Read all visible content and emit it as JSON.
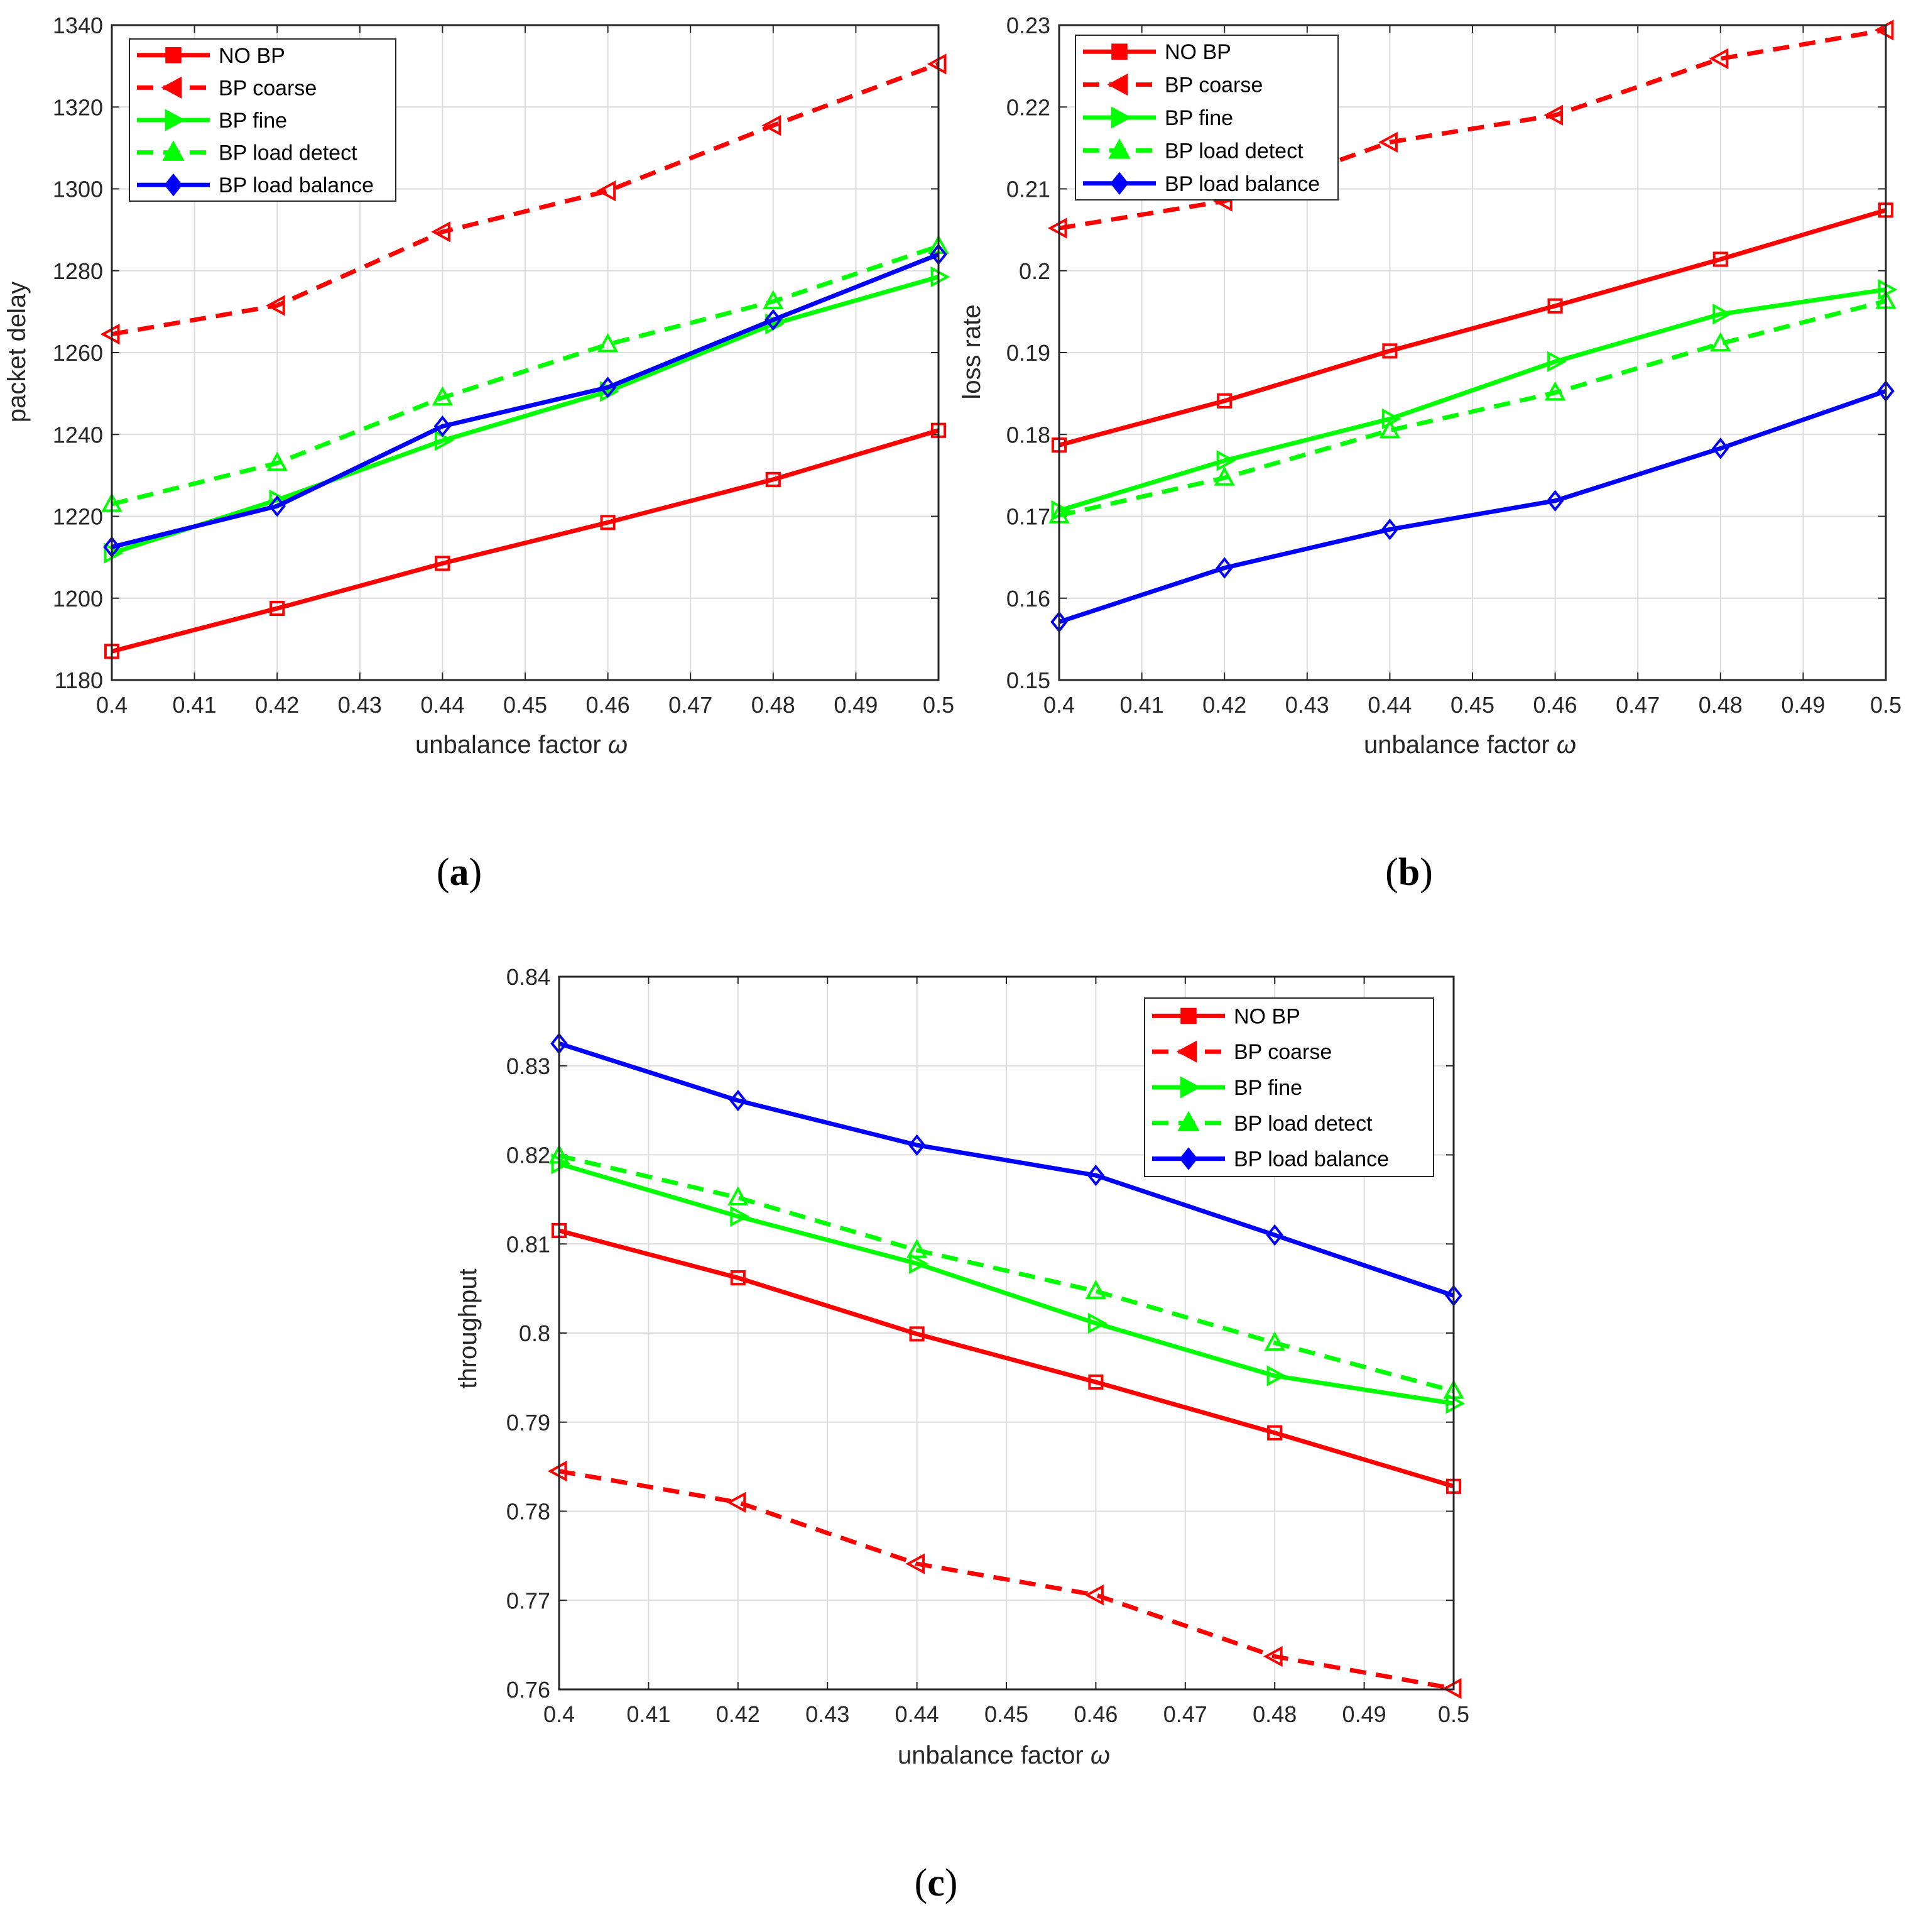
{
  "colors": {
    "no_bp": "#ff0000",
    "bp_coarse": "#ff0000",
    "bp_fine": "#00ff00",
    "bp_load_detect": "#00ff00",
    "bp_load_balance": "#0000ff",
    "grid": "#dcdcdc",
    "axis": "#262626"
  },
  "chart_data": [
    {
      "id": "a",
      "type": "line",
      "caption_letter": "a",
      "xlabel": "unbalance factor",
      "xlabel_symbol": "ω",
      "ylabel": "packet delay",
      "xlim": [
        0.4,
        0.5
      ],
      "ylim": [
        1180,
        1340
      ],
      "grid": true,
      "legend_position": "top-left",
      "x_ticks": [
        "0.4",
        "0.41",
        "0.42",
        "0.43",
        "0.44",
        "0.45",
        "0.46",
        "0.47",
        "0.48",
        "0.49",
        "0.5"
      ],
      "y_ticks": [
        "1180",
        "1200",
        "1220",
        "1240",
        "1260",
        "1280",
        "1300",
        "1320",
        "1340"
      ],
      "x": [
        0.4,
        0.42,
        0.44,
        0.46,
        0.48,
        0.5
      ],
      "series": [
        {
          "name": "NO BP",
          "style": "solid",
          "color": "#ff0000",
          "marker": "square",
          "values": [
            1187,
            1197.5,
            1208.5,
            1218.5,
            1229,
            1241
          ]
        },
        {
          "name": "BP coarse",
          "style": "dashed",
          "color": "#ff0000",
          "marker": "triangle-left",
          "values": [
            1264.5,
            1271.5,
            1289.5,
            1299.5,
            1315.5,
            1330.5
          ]
        },
        {
          "name": "BP fine",
          "style": "solid",
          "color": "#00ff00",
          "marker": "triangle-right",
          "values": [
            1211,
            1224,
            1238.5,
            1250.5,
            1267,
            1278.5
          ]
        },
        {
          "name": "BP load detect",
          "style": "dashed",
          "color": "#00ff00",
          "marker": "triangle-up",
          "values": [
            1223,
            1233,
            1249,
            1262,
            1272.5,
            1286
          ]
        },
        {
          "name": "BP load balance",
          "style": "solid",
          "color": "#0000ff",
          "marker": "diamond",
          "values": [
            1212.5,
            1222.5,
            1242,
            1251.5,
            1268,
            1284
          ]
        }
      ]
    },
    {
      "id": "b",
      "type": "line",
      "caption_letter": "b",
      "xlabel": "unbalance factor",
      "xlabel_symbol": "ω",
      "ylabel": "loss rate",
      "xlim": [
        0.4,
        0.5
      ],
      "ylim": [
        0.15,
        0.23
      ],
      "grid": true,
      "legend_position": "top-left",
      "x_ticks": [
        "0.4",
        "0.41",
        "0.42",
        "0.43",
        "0.44",
        "0.45",
        "0.46",
        "0.47",
        "0.48",
        "0.49",
        "0.5"
      ],
      "y_ticks": [
        "0.15",
        "0.16",
        "0.17",
        "0.18",
        "0.19",
        "0.2",
        "0.21",
        "0.22",
        "0.23"
      ],
      "x": [
        0.4,
        0.42,
        0.44,
        0.46,
        0.48,
        0.5
      ],
      "series": [
        {
          "name": "NO BP",
          "style": "solid",
          "color": "#ff0000",
          "marker": "square",
          "values": [
            0.1787,
            0.1841,
            0.1902,
            0.1957,
            0.2014,
            0.2074
          ]
        },
        {
          "name": "BP coarse",
          "style": "dashed",
          "color": "#ff0000",
          "marker": "triangle-left",
          "values": [
            0.2052,
            0.2085,
            0.2157,
            0.219,
            0.2259,
            0.2294
          ]
        },
        {
          "name": "BP fine",
          "style": "solid",
          "color": "#00ff00",
          "marker": "triangle-right",
          "values": [
            0.1707,
            0.1768,
            0.1819,
            0.1889,
            0.1947,
            0.1977
          ]
        },
        {
          "name": "BP load detect",
          "style": "dashed",
          "color": "#00ff00",
          "marker": "triangle-up",
          "values": [
            0.1701,
            0.1747,
            0.1805,
            0.1851,
            0.1911,
            0.1963
          ]
        },
        {
          "name": "BP load balance",
          "style": "solid",
          "color": "#0000ff",
          "marker": "diamond",
          "values": [
            0.1571,
            0.1637,
            0.1684,
            0.1719,
            0.1783,
            0.1853
          ]
        }
      ]
    },
    {
      "id": "c",
      "type": "line",
      "caption_letter": "c",
      "xlabel": "unbalance factor",
      "xlabel_symbol": "ω",
      "ylabel": "throughput",
      "xlim": [
        0.4,
        0.5
      ],
      "ylim": [
        0.76,
        0.84
      ],
      "grid": true,
      "legend_position": "top-right",
      "x_ticks": [
        "0.4",
        "0.41",
        "0.42",
        "0.43",
        "0.44",
        "0.45",
        "0.46",
        "0.47",
        "0.48",
        "0.49",
        "0.5"
      ],
      "y_ticks": [
        "0.76",
        "0.77",
        "0.78",
        "0.79",
        "0.8",
        "0.81",
        "0.82",
        "0.83",
        "0.84"
      ],
      "x": [
        0.4,
        0.42,
        0.44,
        0.46,
        0.48,
        0.5
      ],
      "series": [
        {
          "name": "NO BP",
          "style": "solid",
          "color": "#ff0000",
          "marker": "square",
          "values": [
            0.8115,
            0.8062,
            0.7999,
            0.7945,
            0.7888,
            0.7828
          ]
        },
        {
          "name": "BP coarse",
          "style": "dashed",
          "color": "#ff0000",
          "marker": "triangle-left",
          "values": [
            0.7845,
            0.781,
            0.7741,
            0.7706,
            0.7637,
            0.7601
          ]
        },
        {
          "name": "BP fine",
          "style": "solid",
          "color": "#00ff00",
          "marker": "triangle-right",
          "values": [
            0.819,
            0.8131,
            0.8078,
            0.8011,
            0.7952,
            0.7921
          ]
        },
        {
          "name": "BP load detect",
          "style": "dashed",
          "color": "#00ff00",
          "marker": "triangle-up",
          "values": [
            0.8199,
            0.8152,
            0.8093,
            0.8047,
            0.7989,
            0.7935
          ]
        },
        {
          "name": "BP load balance",
          "style": "solid",
          "color": "#0000ff",
          "marker": "diamond",
          "values": [
            0.8325,
            0.8261,
            0.8211,
            0.8177,
            0.811,
            0.8042
          ]
        }
      ]
    }
  ]
}
